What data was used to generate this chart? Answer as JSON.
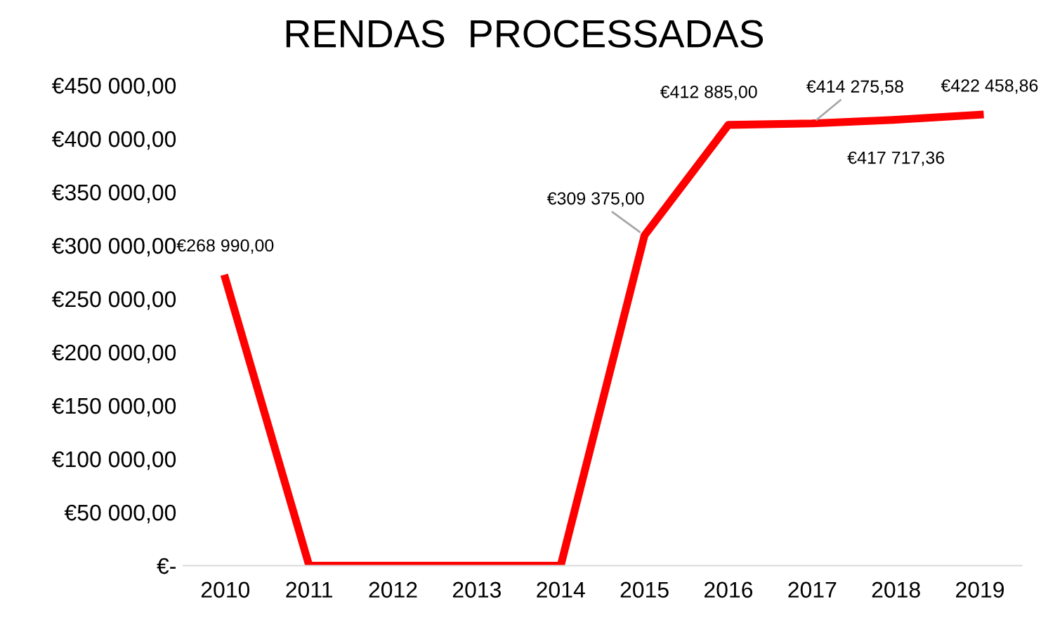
{
  "chart_data": {
    "type": "line",
    "title": "RENDAS  PROCESSADAS",
    "categories": [
      "2010",
      "2011",
      "2012",
      "2013",
      "2014",
      "2015",
      "2016",
      "2017",
      "2018",
      "2019"
    ],
    "series": [
      {
        "color": "#ff0000",
        "values": [
          268990.0,
          0,
          0,
          0,
          0,
          309375.0,
          412885.0,
          414275.58,
          417717.36,
          422458.86
        ],
        "value_labels": [
          "€268 990,00",
          null,
          null,
          null,
          null,
          "€309 375,00",
          "€412 885,00",
          "€414 275,58",
          "€417 717,36",
          "€422 458,86"
        ]
      }
    ],
    "ylim": [
      0,
      450000
    ],
    "yticks": [
      {
        "value": 0,
        "label": "€-"
      },
      {
        "value": 50000,
        "label": "€50 000,00"
      },
      {
        "value": 100000,
        "label": "€100 000,00"
      },
      {
        "value": 150000,
        "label": "€150 000,00"
      },
      {
        "value": 200000,
        "label": "€200 000,00"
      },
      {
        "value": 250000,
        "label": "€250 000,00"
      },
      {
        "value": 300000,
        "label": "€300 000,00"
      },
      {
        "value": 350000,
        "label": "€350 000,00"
      },
      {
        "value": 400000,
        "label": "€400 000,00"
      },
      {
        "value": 450000,
        "label": "€450 000,00"
      }
    ],
    "grid": false,
    "legend": false,
    "marker": "none",
    "line_style": "solid"
  }
}
